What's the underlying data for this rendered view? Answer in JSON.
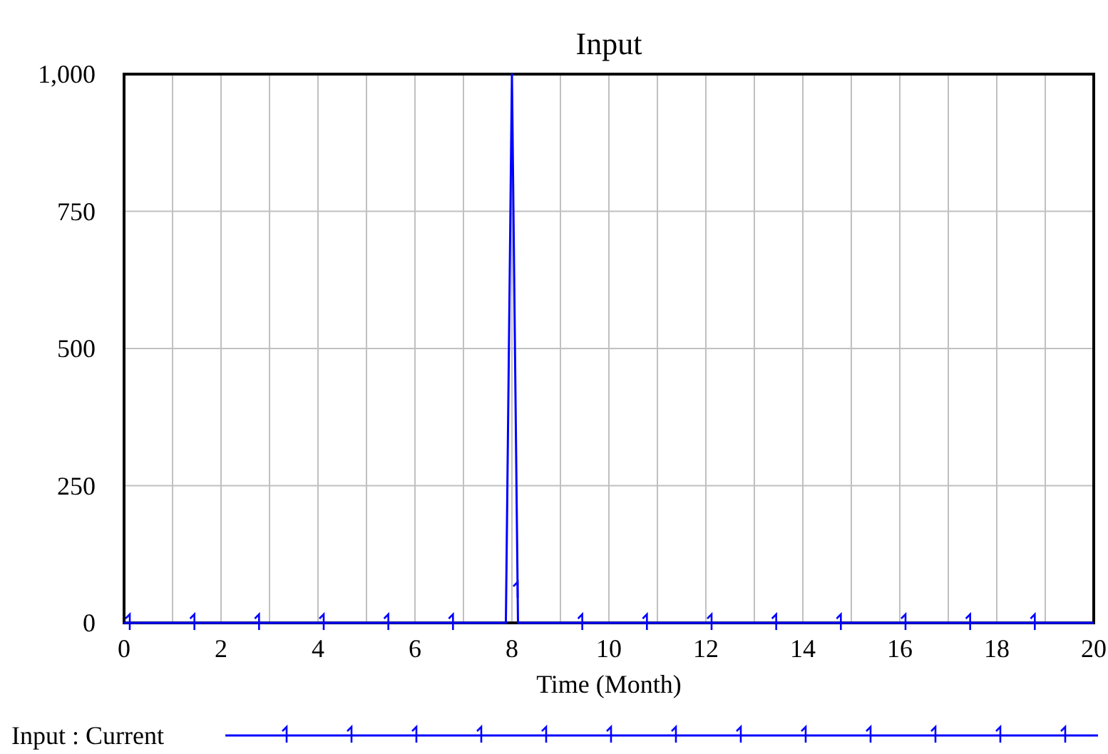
{
  "chart_data": {
    "type": "line",
    "title": "Input",
    "xlabel": "Time (Month)",
    "x": [
      0,
      7.875,
      8,
      8.125,
      20
    ],
    "series": [
      {
        "name": "Input : Current",
        "color": "#0000ff",
        "values": [
          0,
          0,
          1000,
          0,
          0
        ]
      }
    ],
    "xlim": [
      0,
      20
    ],
    "xticks": [
      0,
      {
        "value": 1,
        "label": null
      },
      2,
      {
        "value": 3,
        "label": null
      },
      4,
      {
        "value": 5,
        "label": null
      },
      6,
      {
        "value": 7,
        "label": null
      },
      8,
      {
        "value": 9,
        "label": null
      },
      10,
      {
        "value": 11,
        "label": null
      },
      12,
      {
        "value": 13,
        "label": null
      },
      14,
      {
        "value": 15,
        "label": null
      },
      16,
      {
        "value": 17,
        "label": null
      },
      18,
      {
        "value": 19,
        "label": null
      },
      20
    ],
    "ylim": [
      0,
      1000
    ],
    "yticks": [
      0,
      250,
      500,
      750,
      {
        "value": 1000,
        "label": "1,000"
      }
    ],
    "grid": true,
    "legend": "bottom",
    "line_style": "solid"
  }
}
